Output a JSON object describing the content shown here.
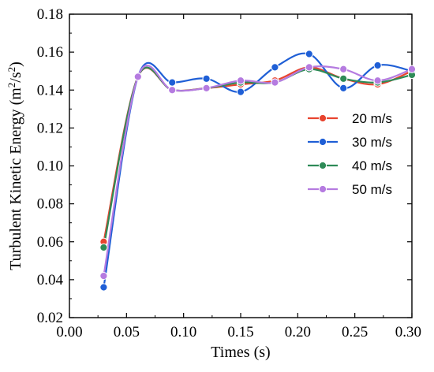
{
  "chart_data": {
    "type": "line",
    "xlabel": "Times (s)",
    "ylabel": "Turbulent Kinetic Energy (m²/s²)",
    "xlim": [
      0.0,
      0.3
    ],
    "ylim": [
      0.02,
      0.18
    ],
    "xticks": [
      "0.00",
      "0.05",
      "0.10",
      "0.15",
      "0.20",
      "0.25",
      "0.30"
    ],
    "yticks": [
      "0.02",
      "0.04",
      "0.06",
      "0.08",
      "0.10",
      "0.12",
      "0.14",
      "0.16",
      "0.18"
    ],
    "grid": false,
    "legend_position": "right-middle",
    "x": [
      0.03,
      0.06,
      0.09,
      0.12,
      0.15,
      0.18,
      0.21,
      0.24,
      0.27,
      0.3
    ],
    "series": [
      {
        "name": "20 m/s",
        "color": "#e8442f",
        "values": [
          0.06,
          0.147,
          0.14,
          0.141,
          0.143,
          0.145,
          0.152,
          0.146,
          0.143,
          0.15
        ]
      },
      {
        "name": "30 m/s",
        "color": "#1f5fd6",
        "values": [
          0.036,
          0.147,
          0.144,
          0.146,
          0.139,
          0.152,
          0.159,
          0.141,
          0.153,
          0.15
        ]
      },
      {
        "name": "40 m/s",
        "color": "#2e8b57",
        "values": [
          0.057,
          0.147,
          0.14,
          0.141,
          0.144,
          0.144,
          0.151,
          0.146,
          0.144,
          0.148
        ]
      },
      {
        "name": "50 m/s",
        "color": "#b57be0",
        "values": [
          0.042,
          0.147,
          0.14,
          0.141,
          0.145,
          0.144,
          0.152,
          0.151,
          0.145,
          0.151
        ]
      }
    ]
  }
}
